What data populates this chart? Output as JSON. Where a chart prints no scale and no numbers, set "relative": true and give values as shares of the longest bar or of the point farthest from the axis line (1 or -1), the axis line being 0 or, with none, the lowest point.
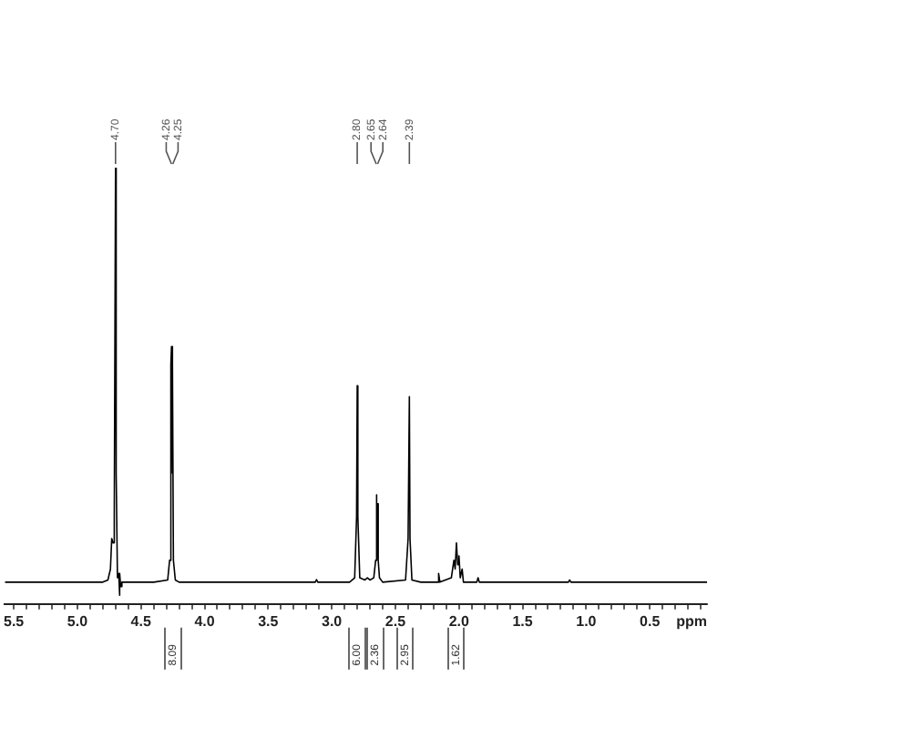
{
  "chart_data": {
    "type": "line",
    "relative": true,
    "xlabel": "ppm",
    "marker": "none",
    "color": "#000000",
    "xlim": [
      5.57,
      0.05
    ],
    "xticks": [
      5.5,
      {
        "value": 5.4,
        "label": null
      },
      {
        "value": 5.3,
        "label": null
      },
      {
        "value": 5.2,
        "label": null
      },
      {
        "value": 5.1,
        "label": null
      },
      {
        "value": 5,
        "label": "5.0"
      },
      {
        "value": 4.9,
        "label": null
      },
      {
        "value": 4.8,
        "label": null
      },
      {
        "value": 4.7,
        "label": null
      },
      {
        "value": 4.6,
        "label": null
      },
      4.5,
      {
        "value": 4.4,
        "label": null
      },
      {
        "value": 4.3,
        "label": null
      },
      {
        "value": 4.2,
        "label": null
      },
      {
        "value": 4.1,
        "label": null
      },
      {
        "value": 4,
        "label": "4.0"
      },
      {
        "value": 3.9,
        "label": null
      },
      {
        "value": 3.8,
        "label": null
      },
      {
        "value": 3.7,
        "label": null
      },
      {
        "value": 3.6,
        "label": null
      },
      3.5,
      {
        "value": 3.4,
        "label": null
      },
      {
        "value": 3.3,
        "label": null
      },
      {
        "value": 3.2,
        "label": null
      },
      {
        "value": 3.1,
        "label": null
      },
      {
        "value": 3,
        "label": "3.0"
      },
      {
        "value": 2.9,
        "label": null
      },
      {
        "value": 2.8,
        "label": null
      },
      {
        "value": 2.7,
        "label": null
      },
      {
        "value": 2.6,
        "label": null
      },
      2.5,
      {
        "value": 2.4,
        "label": null
      },
      {
        "value": 2.3,
        "label": null
      },
      {
        "value": 2.2,
        "label": null
      },
      {
        "value": 2.1,
        "label": null
      },
      {
        "value": 2,
        "label": "2.0"
      },
      {
        "value": 1.9,
        "label": null
      },
      {
        "value": 1.8,
        "label": null
      },
      {
        "value": 1.7,
        "label": null
      },
      {
        "value": 1.6,
        "label": null
      },
      1.5,
      {
        "value": 1.4,
        "label": null
      },
      {
        "value": 1.3,
        "label": null
      },
      {
        "value": 1.2,
        "label": null
      },
      {
        "value": 1.1,
        "label": null
      },
      {
        "value": 1,
        "label": "1.0"
      },
      {
        "value": 0.9,
        "label": null
      },
      {
        "value": 0.8,
        "label": null
      },
      {
        "value": 0.7,
        "label": null
      },
      {
        "value": 0.6,
        "label": null
      },
      0.5,
      {
        "value": 0.4,
        "label": null
      },
      {
        "value": 0.3,
        "label": null
      },
      {
        "value": 0.2,
        "label": null
      },
      {
        "value": 0.1,
        "label": null
      }
    ],
    "x": [
      5.57,
      4.8,
      4.76,
      4.74,
      4.73,
      4.72,
      4.71,
      4.7,
      4.695,
      4.685,
      4.675,
      4.67,
      4.665,
      4.66,
      4.65,
      4.4,
      4.29,
      4.275,
      4.265,
      4.26,
      4.255,
      4.25,
      4.245,
      4.23,
      4.2,
      3.13,
      3.12,
      3.11,
      2.86,
      2.82,
      2.805,
      2.8,
      2.795,
      2.78,
      2.74,
      2.72,
      2.7,
      2.67,
      2.655,
      2.65,
      2.645,
      2.64,
      2.635,
      2.625,
      2.6,
      2.42,
      2.4,
      2.39,
      2.385,
      2.37,
      2.3,
      2.17,
      2.16,
      2.15,
      2.06,
      2.04,
      2.03,
      2.02,
      2.01,
      2,
      1.99,
      1.975,
      1.965,
      1.86,
      1.85,
      1.84,
      1.14,
      1.13,
      1.12,
      0.05
    ],
    "values": [
      0.05,
      0.05,
      0.055,
      0.08,
      0.15,
      0.14,
      0.2,
      1,
      0.3,
      0.06,
      0.07,
      0.02,
      0.07,
      0.04,
      0.05,
      0.05,
      0.055,
      0.1,
      0.55,
      0.59,
      0.3,
      0.55,
      0.1,
      0.055,
      0.05,
      0.05,
      0.056,
      0.05,
      0.05,
      0.06,
      0.2,
      0.5,
      0.2,
      0.06,
      0.055,
      0.06,
      0.055,
      0.06,
      0.1,
      0.25,
      0.1,
      0.23,
      0.1,
      0.06,
      0.05,
      0.055,
      0.15,
      0.475,
      0.15,
      0.055,
      0.05,
      0.05,
      0.07,
      0.05,
      0.06,
      0.1,
      0.08,
      0.14,
      0.09,
      0.11,
      0.06,
      0.08,
      0.05,
      0.05,
      0.06,
      0.05,
      0.05,
      0.055,
      0.05,
      0.05
    ],
    "annotations": [
      {
        "text": "4.70",
        "x": 4.7
      },
      {
        "text": "4.26",
        "x": 4.26
      },
      {
        "text": "4.25",
        "x": 4.25
      },
      {
        "text": "2.80",
        "x": 2.8
      },
      {
        "text": "2.65",
        "x": 2.65
      },
      {
        "text": "2.64",
        "x": 2.64
      },
      {
        "text": "2.39",
        "x": 2.39
      },
      "8.09",
      "6.00",
      "2.36",
      "2.95",
      "1.62"
    ]
  }
}
